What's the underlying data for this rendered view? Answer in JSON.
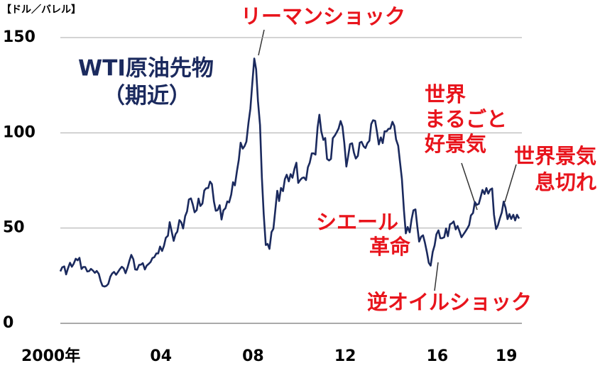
{
  "chart_data": {
    "type": "line",
    "title": "WTI原油先物",
    "subtitle": "（期近）",
    "y_label": "【ドル／バレル】",
    "xlim": [
      2000,
      2019.95
    ],
    "ylim": [
      0,
      150
    ],
    "xticks": [
      {
        "value": 2000,
        "label": "2000年"
      },
      {
        "value": 2004,
        "label": "04"
      },
      {
        "value": 2008,
        "label": "08"
      },
      {
        "value": 2012,
        "label": "12"
      },
      {
        "value": 2016,
        "label": "16"
      },
      {
        "value": 2019,
        "label": "19"
      }
    ],
    "yticks": [
      0,
      50,
      100,
      150
    ],
    "grid": true,
    "annotations": [
      {
        "lines": [
          "リーマンショック"
        ]
      },
      {
        "lines": [
          "世界",
          "まるごと",
          "好景気"
        ]
      },
      {
        "lines": [
          "世界景気",
          "息切れ"
        ]
      },
      {
        "lines": [
          "シエール",
          "革命"
        ]
      },
      {
        "lines": [
          "逆オイルショック"
        ]
      }
    ],
    "series": [
      {
        "name": "WTI",
        "color": "#1b2a5e",
        "x": [
          2000.0,
          2000.08,
          2000.17,
          2000.25,
          2000.33,
          2000.42,
          2000.5,
          2000.58,
          2000.67,
          2000.75,
          2000.83,
          2000.92,
          2001.0,
          2001.08,
          2001.17,
          2001.25,
          2001.33,
          2001.42,
          2001.5,
          2001.58,
          2001.67,
          2001.75,
          2001.83,
          2001.92,
          2002.0,
          2002.08,
          2002.17,
          2002.25,
          2002.33,
          2002.42,
          2002.5,
          2002.58,
          2002.67,
          2002.75,
          2002.83,
          2002.92,
          2003.0,
          2003.08,
          2003.17,
          2003.25,
          2003.33,
          2003.42,
          2003.5,
          2003.58,
          2003.67,
          2003.75,
          2003.83,
          2003.92,
          2004.0,
          2004.08,
          2004.17,
          2004.25,
          2004.33,
          2004.42,
          2004.5,
          2004.58,
          2004.67,
          2004.75,
          2004.83,
          2004.92,
          2005.0,
          2005.08,
          2005.17,
          2005.25,
          2005.33,
          2005.42,
          2005.5,
          2005.58,
          2005.67,
          2005.75,
          2005.83,
          2005.92,
          2006.0,
          2006.08,
          2006.17,
          2006.25,
          2006.33,
          2006.42,
          2006.5,
          2006.58,
          2006.67,
          2006.75,
          2006.83,
          2006.92,
          2007.0,
          2007.08,
          2007.17,
          2007.25,
          2007.33,
          2007.42,
          2007.5,
          2007.58,
          2007.67,
          2007.75,
          2007.83,
          2007.92,
          2008.0,
          2008.08,
          2008.17,
          2008.25,
          2008.33,
          2008.42,
          2008.5,
          2008.58,
          2008.67,
          2008.75,
          2008.83,
          2008.92,
          2009.0,
          2009.08,
          2009.17,
          2009.25,
          2009.33,
          2009.42,
          2009.5,
          2009.58,
          2009.67,
          2009.75,
          2009.83,
          2009.92,
          2010.0,
          2010.08,
          2010.17,
          2010.25,
          2010.33,
          2010.42,
          2010.5,
          2010.58,
          2010.67,
          2010.75,
          2010.83,
          2010.92,
          2011.0,
          2011.08,
          2011.17,
          2011.25,
          2011.33,
          2011.42,
          2011.5,
          2011.58,
          2011.67,
          2011.75,
          2011.83,
          2011.92,
          2012.0,
          2012.08,
          2012.17,
          2012.25,
          2012.33,
          2012.42,
          2012.5,
          2012.58,
          2012.67,
          2012.75,
          2012.83,
          2012.92,
          2013.0,
          2013.08,
          2013.17,
          2013.25,
          2013.33,
          2013.42,
          2013.5,
          2013.58,
          2013.67,
          2013.75,
          2013.83,
          2013.92,
          2014.0,
          2014.08,
          2014.17,
          2014.25,
          2014.33,
          2014.42,
          2014.5,
          2014.58,
          2014.67,
          2014.75,
          2014.83,
          2014.92,
          2015.0,
          2015.08,
          2015.17,
          2015.25,
          2015.33,
          2015.42,
          2015.5,
          2015.58,
          2015.67,
          2015.75,
          2015.83,
          2015.92,
          2016.0,
          2016.08,
          2016.17,
          2016.25,
          2016.33,
          2016.42,
          2016.5,
          2016.58,
          2016.67,
          2016.75,
          2016.83,
          2016.92,
          2017.0,
          2017.08,
          2017.17,
          2017.25,
          2017.33,
          2017.42,
          2017.5,
          2017.58,
          2017.67,
          2017.75,
          2017.83,
          2017.92,
          2018.0,
          2018.08,
          2018.17,
          2018.25,
          2018.33,
          2018.42,
          2018.5,
          2018.58,
          2018.67,
          2018.75,
          2018.83,
          2018.92,
          2019.0,
          2019.08,
          2019.17,
          2019.25,
          2019.33,
          2019.42,
          2019.5,
          2019.58,
          2019.67,
          2019.75,
          2019.83,
          2019.92
        ],
        "values": [
          27.3,
          29.4,
          29.9,
          25.7,
          28.8,
          31.8,
          29.7,
          31.3,
          33.9,
          33.1,
          34.4,
          28.5,
          29.6,
          29.6,
          27.2,
          27.4,
          28.6,
          27.6,
          26.5,
          27.5,
          25.9,
          22.2,
          19.7,
          19.3,
          19.7,
          20.7,
          24.5,
          26.2,
          27.0,
          25.5,
          26.9,
          28.4,
          29.7,
          28.9,
          26.3,
          29.4,
          32.9,
          35.9,
          33.6,
          28.3,
          28.1,
          30.7,
          30.8,
          31.6,
          28.3,
          30.3,
          31.1,
          32.2,
          34.3,
          34.7,
          36.7,
          36.7,
          40.3,
          38.0,
          40.7,
          44.9,
          46.0,
          53.1,
          48.5,
          43.3,
          46.8,
          48.1,
          54.2,
          53.0,
          49.8,
          56.3,
          58.7,
          65.0,
          65.6,
          62.4,
          58.3,
          59.4,
          65.5,
          61.6,
          62.9,
          69.7,
          70.9,
          71.0,
          74.4,
          73.1,
          63.9,
          59.1,
          59.4,
          62.0,
          54.5,
          59.3,
          60.4,
          64.0,
          63.5,
          67.5,
          74.1,
          72.4,
          79.9,
          85.8,
          94.8,
          91.7,
          93.0,
          95.4,
          105.4,
          112.6,
          125.4,
          139.0,
          133.4,
          116.7,
          104.1,
          76.6,
          57.3,
          41.1,
          41.7,
          39.1,
          47.9,
          49.6,
          59.0,
          69.6,
          64.2,
          71.1,
          69.4,
          75.7,
          78.0,
          74.5,
          78.3,
          76.4,
          81.2,
          84.3,
          73.7,
          75.3,
          76.3,
          76.6,
          75.2,
          81.9,
          84.3,
          89.2,
          89.2,
          88.6,
          102.9,
          109.5,
          100.9,
          96.3,
          97.3,
          86.3,
          85.5,
          86.3,
          97.2,
          98.6,
          100.3,
          102.2,
          106.2,
          103.3,
          94.7,
          82.3,
          87.9,
          94.1,
          94.5,
          89.5,
          86.5,
          87.9,
          94.8,
          95.3,
          92.9,
          92.0,
          94.5,
          95.8,
          104.6,
          106.6,
          106.3,
          100.5,
          93.9,
          97.6,
          94.6,
          100.8,
          100.8,
          102.1,
          102.2,
          105.8,
          103.6,
          96.5,
          93.2,
          84.4,
          75.8,
          59.3,
          47.2,
          50.6,
          47.8,
          54.5,
          59.3,
          59.8,
          50.9,
          42.9,
          45.5,
          46.2,
          42.4,
          37.2,
          31.7,
          30.3,
          37.5,
          40.8,
          46.7,
          48.8,
          44.7,
          44.7,
          45.2,
          49.8,
          45.7,
          52.0,
          52.5,
          53.5,
          49.3,
          51.1,
          48.5,
          45.2,
          46.6,
          48.0,
          49.8,
          51.6,
          56.6,
          57.9,
          63.7,
          62.2,
          62.7,
          66.3,
          70.0,
          67.9,
          71.0,
          68.1,
          70.2,
          70.8,
          57.0,
          49.5,
          51.4,
          54.9,
          58.2,
          63.9,
          60.8,
          54.7,
          57.4,
          54.8,
          57.0,
          54.0,
          57.0,
          55.0
        ]
      }
    ]
  }
}
